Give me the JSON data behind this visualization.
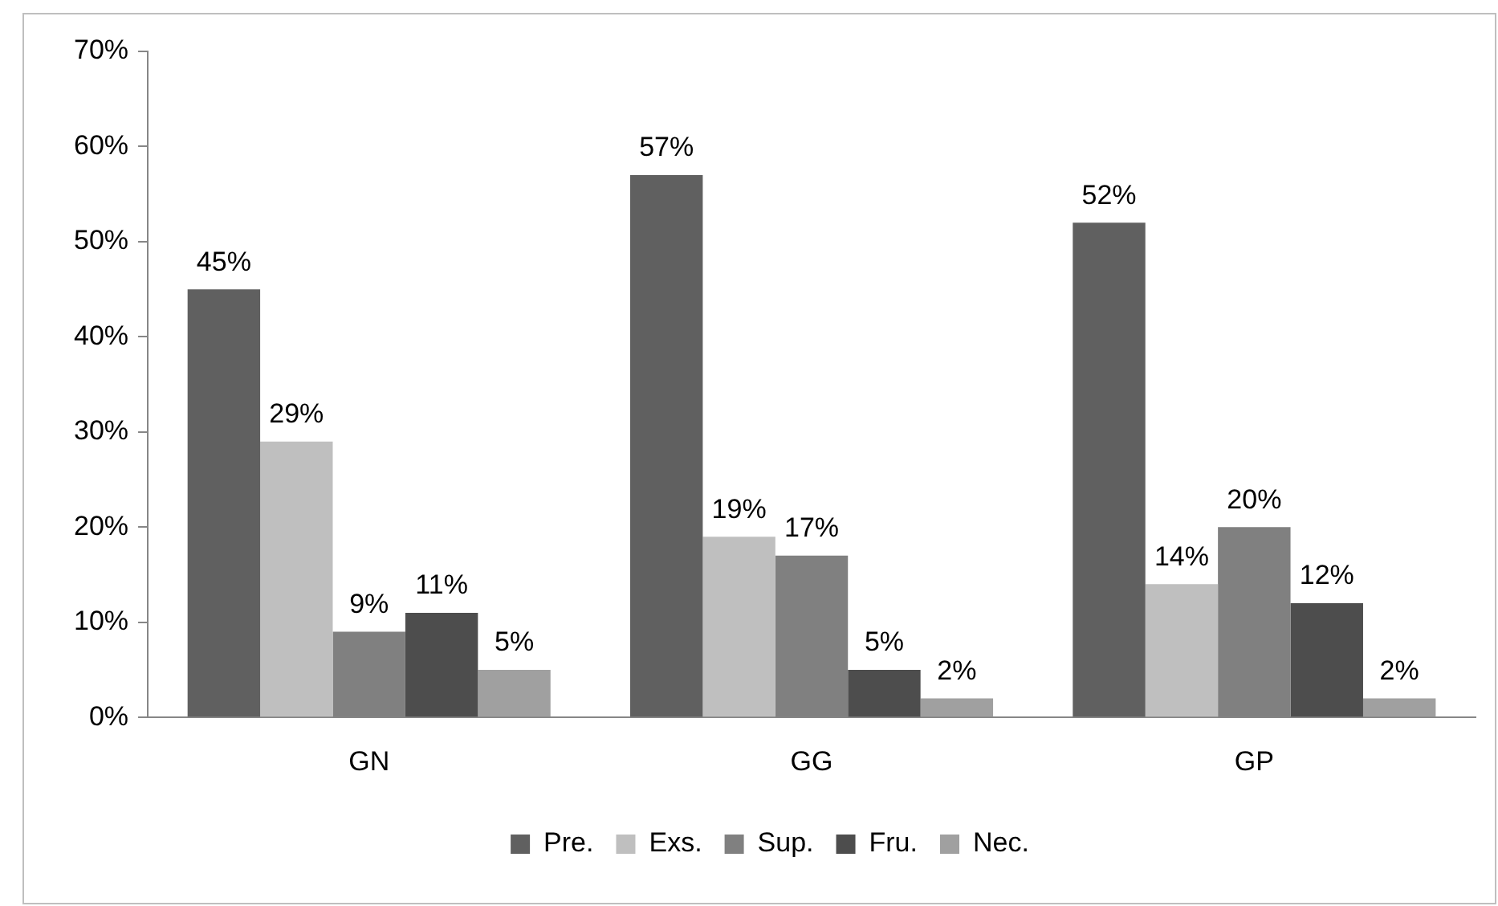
{
  "chart_data": {
    "type": "bar",
    "categories": [
      "GN",
      "GG",
      "GP"
    ],
    "series": [
      {
        "name": "Pre.",
        "color": "#606060",
        "values": [
          45,
          57,
          52
        ],
        "value_labels": [
          "45%",
          "57%",
          "52%"
        ]
      },
      {
        "name": "Exs.",
        "color": "#bfbfbf",
        "values": [
          29,
          19,
          14
        ],
        "value_labels": [
          "29%",
          "19%",
          "14%"
        ]
      },
      {
        "name": "Sup.",
        "color": "#808080",
        "values": [
          9,
          17,
          20
        ],
        "value_labels": [
          "9%",
          "17%",
          "20%"
        ]
      },
      {
        "name": "Fru.",
        "color": "#4d4d4d",
        "values": [
          11,
          5,
          12
        ],
        "value_labels": [
          "11%",
          "5%",
          "12%"
        ]
      },
      {
        "name": "Nec.",
        "color": "#a0a0a0",
        "values": [
          5,
          2,
          2
        ],
        "value_labels": [
          "5%",
          "2%",
          "2%"
        ]
      }
    ],
    "ylim": [
      0,
      70
    ],
    "yticks": [
      {
        "value": 0,
        "label": "0%"
      },
      {
        "value": 10,
        "label": "10%"
      },
      {
        "value": 20,
        "label": "20%"
      },
      {
        "value": 30,
        "label": "30%"
      },
      {
        "value": 40,
        "label": "40%"
      },
      {
        "value": 50,
        "label": "50%"
      },
      {
        "value": 60,
        "label": "60%"
      },
      {
        "value": 70,
        "label": "70%"
      }
    ],
    "grid": false,
    "legend": "bottom"
  }
}
